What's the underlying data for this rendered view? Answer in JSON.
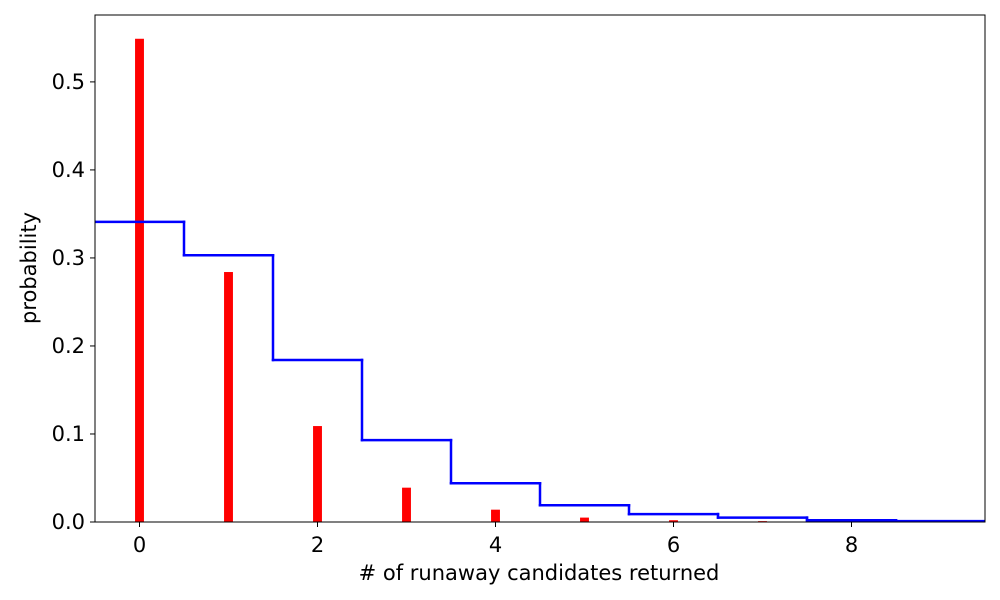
{
  "chart_data": {
    "type": "bar",
    "x_label": "# of runaway candidates returned",
    "y_label": "probability",
    "x": [
      0,
      1,
      2,
      3,
      4,
      5,
      6,
      7,
      8,
      9
    ],
    "series": [
      {
        "type": "bar",
        "color": "#ff0000",
        "values": [
          0.549,
          0.284,
          0.109,
          0.039,
          0.014,
          0.005,
          0.002,
          0.001,
          0.0003,
          0.0001
        ]
      },
      {
        "type": "step",
        "color": "#0000ff",
        "values": [
          0.341,
          0.303,
          0.184,
          0.093,
          0.044,
          0.019,
          0.009,
          0.005,
          0.002,
          0.001
        ]
      }
    ],
    "xlim": [
      -0.5,
      9.5
    ],
    "ylim": [
      0,
      0.576
    ],
    "xticks": [
      0,
      2,
      4,
      6,
      8
    ],
    "yticks": [
      {
        "value": 0,
        "label": "0.0"
      },
      0.1,
      0.2,
      0.3,
      0.4,
      0.5
    ],
    "grid": false
  }
}
